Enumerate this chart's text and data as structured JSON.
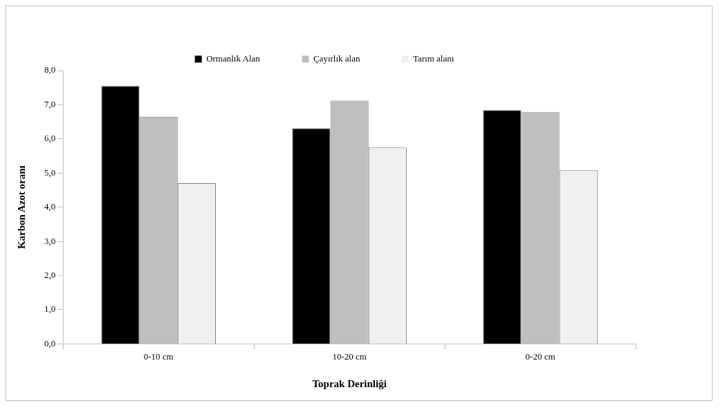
{
  "chart_data": {
    "type": "bar",
    "xlabel": "Toprak Derinliği",
    "ylabel": "Karbon Azot oranı",
    "categories": [
      "0-10 cm",
      "10-20 cm",
      "0-20 cm"
    ],
    "series": [
      {
        "name": "Ormanlık Alan",
        "color": "#000000",
        "values": [
          7.55,
          6.31,
          6.84
        ]
      },
      {
        "name": "Çayırlık alan",
        "color": "#bfbfbf",
        "values": [
          6.65,
          7.12,
          6.78
        ]
      },
      {
        "name": "Tarım alanı",
        "color": "#f0f0f0",
        "values": [
          4.7,
          5.75,
          5.08
        ]
      }
    ],
    "ylim": [
      0,
      8
    ],
    "yticks": [
      {
        "value": 0,
        "label": "0,0"
      },
      {
        "value": 1,
        "label": "1,0"
      },
      {
        "value": 2,
        "label": "2,0"
      },
      {
        "value": 3,
        "label": "3,0"
      },
      {
        "value": 4,
        "label": "4,0"
      },
      {
        "value": 5,
        "label": "5,0"
      },
      {
        "value": 6,
        "label": "6,0"
      },
      {
        "value": 7,
        "label": "7,0"
      },
      {
        "value": 8,
        "label": "8,0"
      }
    ],
    "grid": false,
    "legend": "top"
  }
}
